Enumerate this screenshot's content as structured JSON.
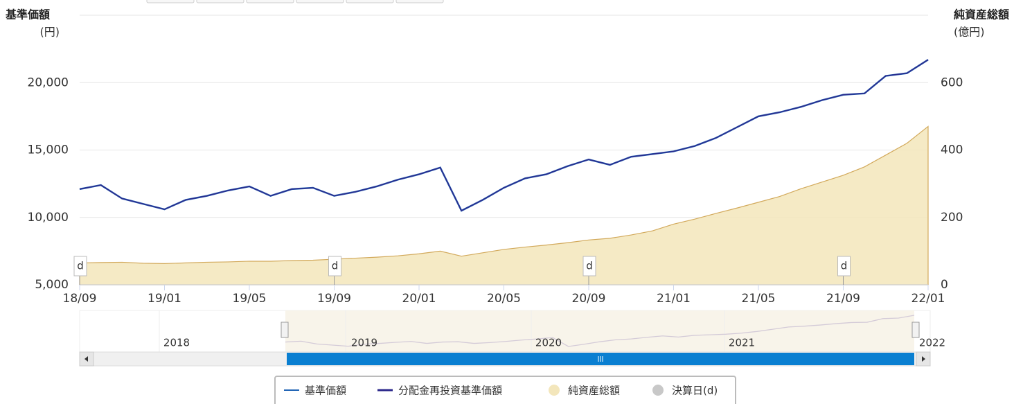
{
  "chart_data": {
    "type": "line",
    "y_title": "基準価額",
    "y_unit": "(円)",
    "y2_title": "純資産総額",
    "y2_unit": "(億円)",
    "x": [
      "18/09",
      "18/10",
      "18/11",
      "18/12",
      "19/01",
      "19/02",
      "19/03",
      "19/04",
      "19/05",
      "19/06",
      "19/07",
      "19/08",
      "19/09",
      "19/10",
      "19/11",
      "19/12",
      "20/01",
      "20/02",
      "20/03",
      "20/04",
      "20/05",
      "20/06",
      "20/07",
      "20/08",
      "20/09",
      "20/10",
      "20/11",
      "20/12",
      "21/01",
      "21/02",
      "21/03",
      "21/04",
      "21/05",
      "21/06",
      "21/07",
      "21/08",
      "21/09",
      "21/10",
      "21/11",
      "21/12",
      "22/01"
    ],
    "xticks": [
      "18/09",
      "19/01",
      "19/05",
      "19/09",
      "20/01",
      "20/05",
      "20/09",
      "21/01",
      "21/05",
      "21/09",
      "22/01"
    ],
    "ylim": [
      5000,
      25000
    ],
    "yticks": [
      {
        "value": 5000,
        "label": "5,000"
      },
      {
        "value": 10000,
        "label": "10,000"
      },
      {
        "value": 15000,
        "label": "15,000"
      },
      {
        "value": 20000,
        "label": "20,000"
      }
    ],
    "y2lim": [
      0,
      800
    ],
    "y2ticks": [
      0,
      200,
      400,
      600
    ],
    "grid": true,
    "series": [
      {
        "name": "基準価額",
        "color": "#1f63b5",
        "values": [
          12100,
          12400,
          11400,
          11000,
          10600,
          11300,
          11600,
          12000,
          12300,
          11600,
          12100,
          12200,
          11600,
          11900,
          12300,
          12800,
          13200,
          13700,
          10500,
          11300,
          12200,
          12900,
          13200,
          13800,
          14300,
          13900,
          14500,
          14700,
          14900,
          15300,
          15900,
          16700,
          17500,
          17800,
          18200,
          18700,
          19100,
          19200,
          20500,
          20700,
          21700
        ]
      },
      {
        "name": "分配金再投資基準価額",
        "color": "#2d2a8c",
        "values": [
          12100,
          12400,
          11400,
          11000,
          10600,
          11300,
          11600,
          12000,
          12300,
          11600,
          12100,
          12200,
          11600,
          11900,
          12300,
          12800,
          13200,
          13700,
          10500,
          11300,
          12200,
          12900,
          13200,
          13800,
          14300,
          13900,
          14500,
          14700,
          14900,
          15300,
          15900,
          16700,
          17500,
          17800,
          18200,
          18700,
          19100,
          19200,
          20500,
          20700,
          21700
        ]
      },
      {
        "name": "純資産総額",
        "color": "#f3e6bb",
        "axis": "y2",
        "values": [
          65,
          66,
          67,
          64,
          63,
          65,
          67,
          68,
          70,
          70,
          72,
          73,
          76,
          79,
          82,
          86,
          92,
          100,
          85,
          95,
          105,
          112,
          118,
          125,
          133,
          138,
          148,
          160,
          180,
          195,
          212,
          228,
          245,
          262,
          285,
          305,
          325,
          350,
          385,
          420,
          470
        ]
      }
    ],
    "markers": {
      "name": "決算日(d)",
      "color": "#c8c8c8",
      "label": "d",
      "x": [
        "18/09",
        "19/09",
        "20/09",
        "21/09"
      ]
    },
    "navigator_labels": [
      "2018",
      "2019",
      "2020",
      "2021",
      "2022"
    ]
  }
}
